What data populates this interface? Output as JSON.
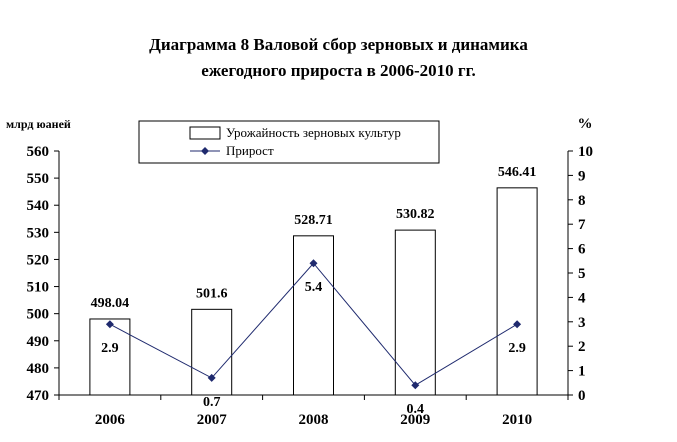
{
  "title_line1": "Диаграмма 8 Валовой сбор зерновых и динамика",
  "title_line2": "ежегодного прироста в 2006-2010 гг.",
  "chart_data": {
    "type": "bar",
    "title": "Диаграмма 8 Валовой сбор зерновых и динамика ежегодного прироста в 2006-2010 гг.",
    "categories": [
      "2006",
      "2007",
      "2008",
      "2009",
      "2010"
    ],
    "left_axis": {
      "label": "млрд юаней",
      "ylim": [
        470,
        560
      ],
      "ticks": [
        "470",
        "480",
        "490",
        "500",
        "510",
        "520",
        "530",
        "540",
        "550",
        "560"
      ]
    },
    "right_axis": {
      "label": "%",
      "ylim": [
        0,
        10
      ],
      "ticks": [
        "0",
        "1",
        "2",
        "3",
        "4",
        "5",
        "6",
        "7",
        "8",
        "9",
        "10"
      ]
    },
    "series": [
      {
        "name": "Урожайность зерновых культур",
        "type": "bar",
        "axis": "left",
        "values": [
          498.04,
          501.6,
          528.71,
          530.82,
          546.41
        ],
        "labels": [
          "498.04",
          "501.6",
          "528.71",
          "530.82",
          "546.41"
        ]
      },
      {
        "name": "Прирост",
        "type": "line",
        "axis": "right",
        "values": [
          2.9,
          0.7,
          5.4,
          0.4,
          2.9
        ],
        "labels": [
          "2.9",
          "0.7",
          "5.4",
          "0.4",
          "2.9"
        ],
        "color": "#1f2a6e"
      }
    ],
    "grid": false,
    "legend_position": "top-center"
  }
}
